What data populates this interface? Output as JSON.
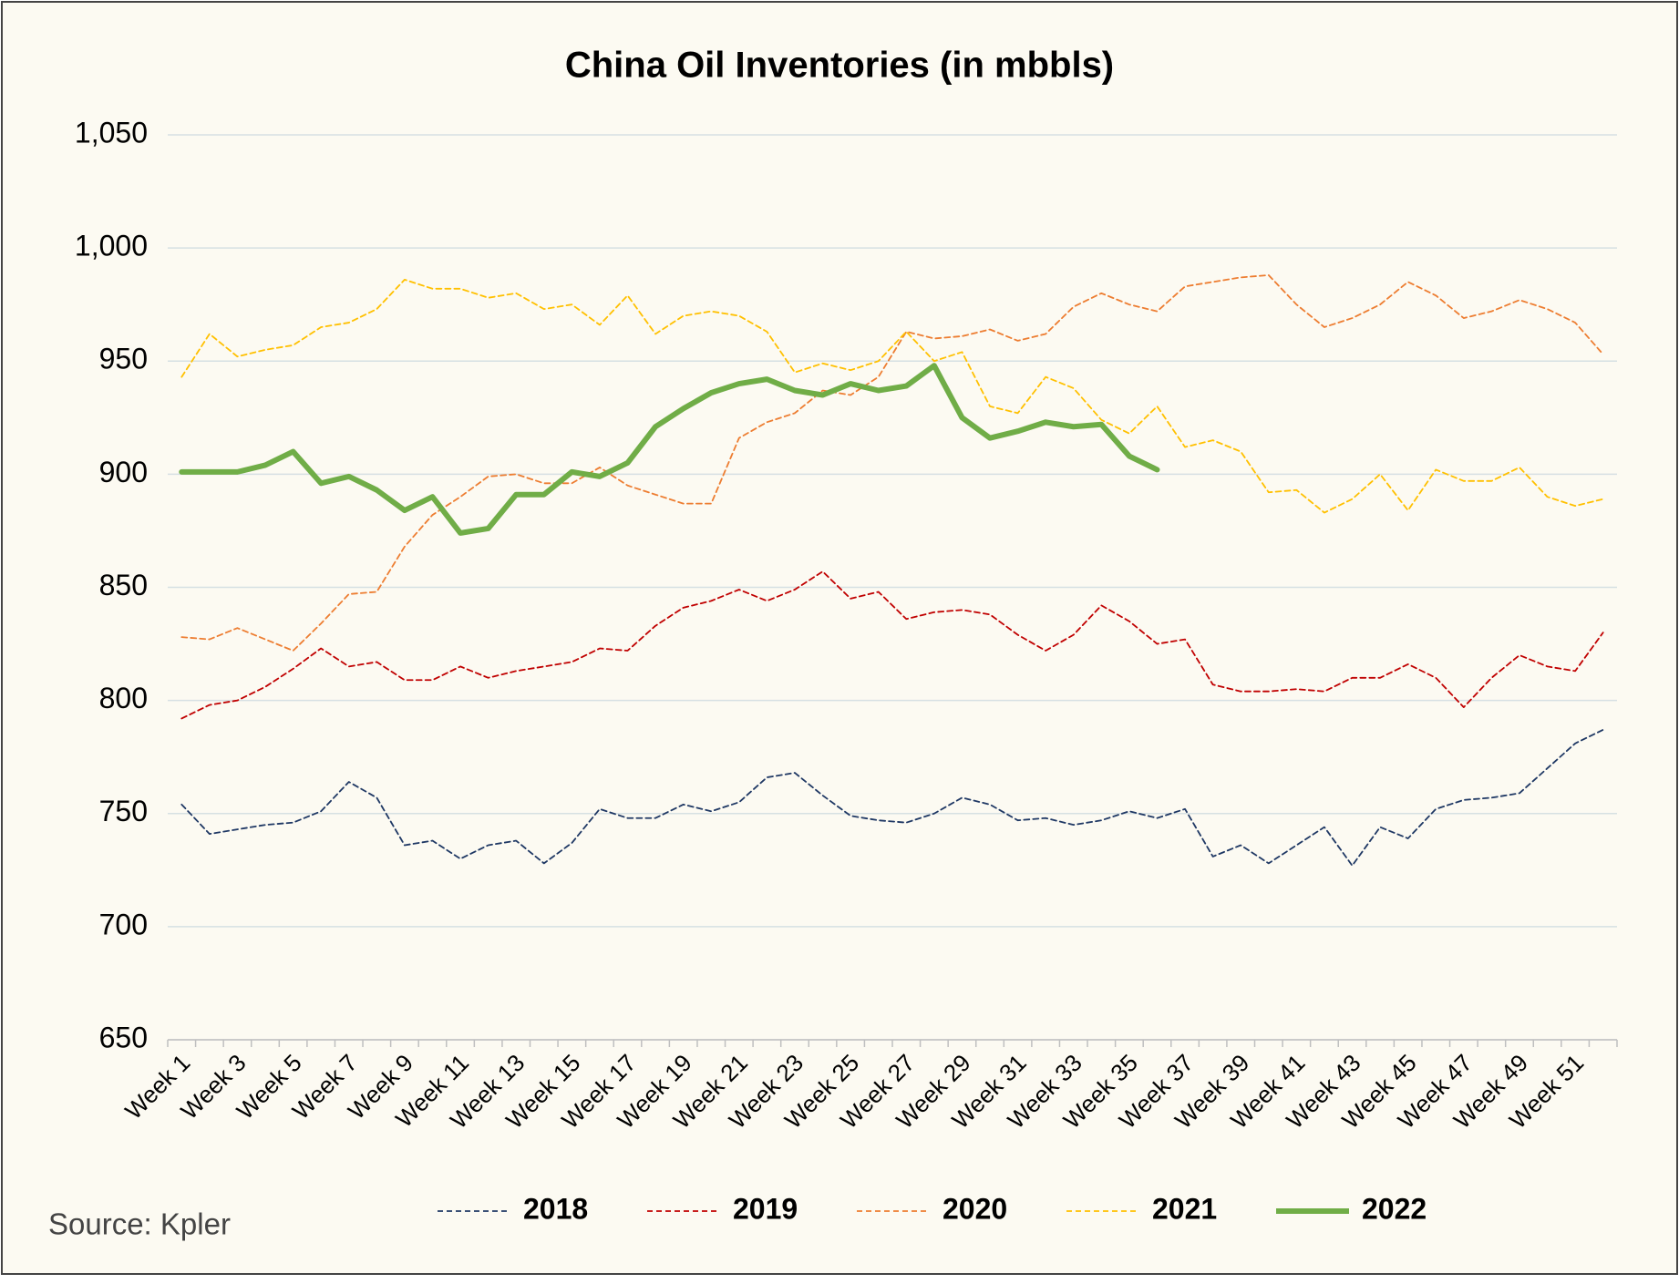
{
  "chart_data": {
    "type": "line",
    "title": "China Oil Inventories (in mbbls)",
    "source": "Source: Kpler",
    "categories": [
      "Week 1",
      null,
      "Week 3",
      null,
      "Week 5",
      null,
      "Week 7",
      null,
      "Week 9",
      null,
      "Week 11",
      null,
      "Week 13",
      null,
      "Week 15",
      null,
      "Week 17",
      null,
      "Week 19",
      null,
      "Week 21",
      null,
      "Week 23",
      null,
      "Week 25",
      null,
      "Week 27",
      null,
      "Week 29",
      null,
      "Week 31",
      null,
      "Week 33",
      null,
      "Week 35",
      null,
      "Week 37",
      null,
      "Week 39",
      null,
      "Week 41",
      null,
      "Week 43",
      null,
      "Week 45",
      null,
      "Week 47",
      null,
      "Week 49",
      null,
      "Week 51",
      null
    ],
    "ylim": [
      650,
      1050
    ],
    "yticks": [
      650,
      700,
      750,
      800,
      850,
      900,
      950,
      {
        "value": 1000,
        "label": "1,000"
      },
      {
        "value": 1050,
        "label": "1,050"
      }
    ],
    "grid": true,
    "legend": "bottom",
    "series": [
      {
        "name": "2018",
        "color": "#1f3864",
        "dashed": true,
        "values": [
          754,
          741,
          743,
          745,
          746,
          751,
          764,
          757,
          736,
          738,
          730,
          736,
          738,
          728,
          737,
          752,
          748,
          748,
          754,
          751,
          755,
          766,
          768,
          758,
          749,
          747,
          746,
          750,
          757,
          754,
          747,
          748,
          745,
          747,
          751,
          748,
          752,
          731,
          736,
          728,
          736,
          744,
          727,
          744,
          739,
          752,
          756,
          757,
          759,
          770,
          781,
          787
        ]
      },
      {
        "name": "2019",
        "color": "#c00000",
        "dashed": true,
        "values": [
          792,
          798,
          800,
          806,
          814,
          823,
          815,
          817,
          809,
          809,
          815,
          810,
          813,
          815,
          817,
          823,
          822,
          833,
          841,
          844,
          849,
          844,
          849,
          857,
          845,
          848,
          836,
          839,
          840,
          838,
          829,
          822,
          829,
          842,
          835,
          825,
          827,
          807,
          804,
          804,
          805,
          804,
          810,
          810,
          816,
          810,
          797,
          810,
          820,
          815,
          813,
          830
        ]
      },
      {
        "name": "2020",
        "color": "#ed7d31",
        "dashed": true,
        "values": [
          828,
          827,
          832,
          827,
          822,
          834,
          847,
          848,
          868,
          882,
          890,
          899,
          900,
          896,
          896,
          903,
          895,
          891,
          887,
          887,
          916,
          923,
          927,
          937,
          935,
          943,
          963,
          960,
          961,
          964,
          959,
          962,
          974,
          980,
          975,
          972,
          983,
          985,
          987,
          988,
          975,
          965,
          969,
          975,
          985,
          979,
          969,
          972,
          977,
          973,
          967,
          953
        ]
      },
      {
        "name": "2021",
        "color": "#ffc000",
        "dashed": true,
        "values": [
          943,
          962,
          952,
          955,
          957,
          965,
          967,
          973,
          986,
          982,
          982,
          978,
          980,
          973,
          975,
          966,
          979,
          962,
          970,
          972,
          970,
          963,
          945,
          949,
          946,
          950,
          963,
          950,
          954,
          930,
          927,
          943,
          938,
          924,
          918,
          930,
          912,
          915,
          910,
          892,
          893,
          883,
          889,
          900,
          884,
          902,
          897,
          897,
          903,
          890,
          886,
          889
        ]
      },
      {
        "name": "2022",
        "color": "#70ad47",
        "dashed": false,
        "values": [
          901,
          901,
          901,
          904,
          910,
          896,
          899,
          893,
          884,
          890,
          874,
          876,
          891,
          891,
          901,
          899,
          905,
          921,
          929,
          936,
          940,
          942,
          937,
          935,
          940,
          937,
          939,
          948,
          925,
          916,
          919,
          923,
          921,
          922,
          908,
          902,
          null,
          null,
          null,
          null,
          null,
          null,
          null,
          null,
          null,
          null,
          null,
          null,
          null,
          null,
          null,
          null
        ]
      }
    ]
  }
}
